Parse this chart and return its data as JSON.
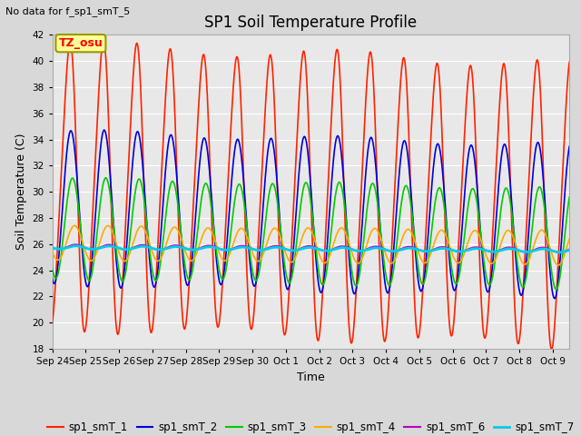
{
  "title": "SP1 Soil Temperature Profile",
  "subtitle": "No data for f_sp1_smT_5",
  "xlabel": "Time",
  "ylabel": "Soil Temperature (C)",
  "ylim": [
    18,
    42
  ],
  "yticks": [
    18,
    20,
    22,
    24,
    26,
    28,
    30,
    32,
    34,
    36,
    38,
    40,
    42
  ],
  "background_color": "#d8d8d8",
  "plot_bg_color": "#e8e8e8",
  "tz_label": "TZ_osu",
  "tz_box_color": "#ffff99",
  "tz_box_edge": "#999900",
  "series_order": [
    "sp1_smT_1",
    "sp1_smT_2",
    "sp1_smT_3",
    "sp1_smT_4",
    "sp1_smT_6",
    "sp1_smT_7"
  ],
  "series": {
    "sp1_smT_1": {
      "color": "#ff2200",
      "linewidth": 1.2,
      "amp": 10.5,
      "mean": 30.5,
      "phase": 0.0,
      "trend": -0.012
    },
    "sp1_smT_2": {
      "color": "#0000dd",
      "linewidth": 1.2,
      "amp": 5.8,
      "mean": 28.8,
      "phase": 0.35,
      "trend": -0.008
    },
    "sp1_smT_3": {
      "color": "#00cc00",
      "linewidth": 1.2,
      "amp": 3.8,
      "mean": 27.2,
      "phase": 0.65,
      "trend": -0.006
    },
    "sp1_smT_4": {
      "color": "#ffaa00",
      "linewidth": 1.2,
      "amp": 1.3,
      "mean": 26.1,
      "phase": 1.05,
      "trend": -0.003
    },
    "sp1_smT_6": {
      "color": "#bb00bb",
      "linewidth": 1.2,
      "amp": 0.18,
      "mean": 25.8,
      "phase": 1.25,
      "trend": -0.002
    },
    "sp1_smT_7": {
      "color": "#00ccee",
      "linewidth": 2.0,
      "amp": 0.12,
      "mean": 25.75,
      "phase": 1.35,
      "trend": -0.002
    }
  },
  "x_tick_labels": [
    "Sep 24",
    "Sep 25",
    "Sep 26",
    "Sep 27",
    "Sep 28",
    "Sep 29",
    "Sep 30",
    "Oct 1",
    "Oct 2",
    "Oct 3",
    "Oct 4",
    "Oct 5",
    "Oct 6",
    "Oct 7",
    "Oct 8",
    "Oct 9"
  ],
  "num_days": 15.5
}
